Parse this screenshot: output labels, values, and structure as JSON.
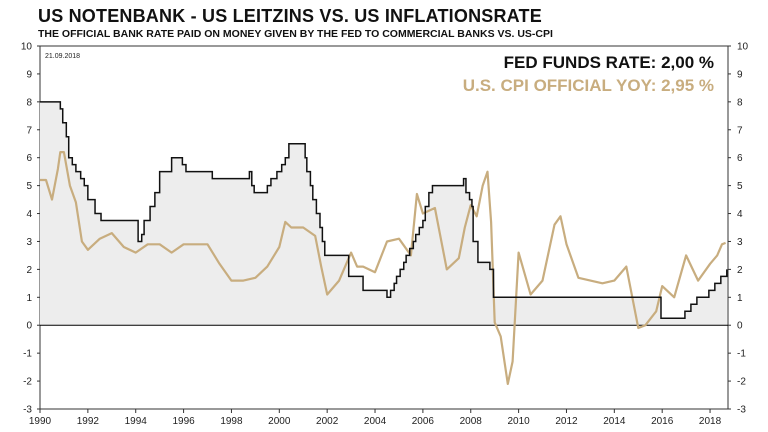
{
  "header": {
    "title": "US NOTENBANK - US LEITZINS VS. US INFLATIONSRATE",
    "subtitle": "THE OFFICIAL BANK RATE PAID ON MONEY GIVEN BY THE FED TO COMMERCIAL BANKS VS. US-CPI"
  },
  "date_label": "21.09.2018",
  "legend": {
    "fed_label": "FED FUNDS RATE: 2,00 %",
    "cpi_label": "U.S. CPI OFFICIAL YOY: 2,95 %"
  },
  "colors": {
    "fed_line": "#111111",
    "fed_fill": "#ededed",
    "cpi_line": "#c8ad7f",
    "zero_line": "#000000"
  },
  "chart_data": {
    "type": "line",
    "xlim": [
      1990,
      2018.75
    ],
    "ylim": [
      -3,
      10
    ],
    "x_ticks": [
      1990,
      1992,
      1994,
      1996,
      1998,
      2000,
      2002,
      2004,
      2006,
      2008,
      2010,
      2012,
      2014,
      2016,
      2018
    ],
    "y_ticks": [
      -3,
      -2,
      -1,
      0,
      1,
      2,
      3,
      4,
      5,
      6,
      7,
      8,
      9,
      10
    ],
    "series": [
      {
        "name": "FED FUNDS RATE",
        "style": "step-area",
        "x": [
          1990,
          1990.7,
          1990.85,
          1990.95,
          1991.1,
          1991.2,
          1991.35,
          1991.5,
          1991.7,
          1991.85,
          1992.0,
          1992.3,
          1992.55,
          1994.1,
          1994.25,
          1994.35,
          1994.6,
          1994.8,
          1995.0,
          1995.5,
          1995.95,
          1996.1,
          1997.2,
          1998.75,
          1998.85,
          1998.95,
          1999.5,
          1999.65,
          1999.9,
          2000.1,
          2000.25,
          2000.4,
          2001.0,
          2001.08,
          2001.15,
          2001.3,
          2001.4,
          2001.55,
          2001.7,
          2001.8,
          2001.9,
          2002.9,
          2003.5,
          2004.5,
          2004.65,
          2004.8,
          2004.9,
          2005.05,
          2005.2,
          2005.3,
          2005.45,
          2005.6,
          2005.7,
          2005.85,
          2006.0,
          2006.1,
          2006.25,
          2006.4,
          2007.7,
          2007.8,
          2007.95,
          2008.05,
          2008.1,
          2008.3,
          2008.8,
          2008.95,
          2015.95,
          2016.95,
          2017.2,
          2017.45,
          2017.95,
          2018.2,
          2018.45,
          2018.7
        ],
        "values": [
          8.0,
          8.0,
          7.75,
          7.25,
          6.75,
          6.0,
          5.75,
          5.5,
          5.25,
          5.0,
          4.5,
          4.0,
          3.75,
          3.0,
          3.25,
          3.75,
          4.25,
          4.75,
          5.5,
          6.0,
          5.75,
          5.5,
          5.25,
          5.5,
          5.0,
          4.75,
          5.0,
          5.25,
          5.5,
          5.75,
          6.0,
          6.5,
          6.5,
          6.0,
          5.5,
          5.0,
          4.5,
          4.0,
          3.5,
          3.0,
          2.5,
          1.75,
          1.25,
          1.0,
          1.25,
          1.5,
          1.75,
          2.0,
          2.25,
          2.5,
          2.75,
          3.0,
          3.25,
          3.5,
          3.75,
          4.25,
          4.75,
          5.0,
          5.25,
          4.75,
          4.5,
          4.25,
          3.0,
          2.25,
          2.0,
          1.0,
          0.25,
          0.5,
          0.75,
          1.0,
          1.25,
          1.5,
          1.75,
          2.0
        ]
      },
      {
        "name": "U.S. CPI OFFICIAL YOY",
        "style": "line",
        "x": [
          1990,
          1990.25,
          1990.5,
          1990.75,
          1990.85,
          1991,
          1991.25,
          1991.5,
          1991.75,
          1992,
          1992.5,
          1993,
          1993.5,
          1994,
          1994.5,
          1995,
          1995.5,
          1996,
          1996.5,
          1997,
          1997.5,
          1998,
          1998.5,
          1999,
          1999.5,
          2000,
          2000.25,
          2000.5,
          2000.75,
          2001,
          2001.5,
          2001.75,
          2002,
          2002.5,
          2003,
          2003.25,
          2003.5,
          2004,
          2004.5,
          2005,
          2005.5,
          2005.75,
          2006,
          2006.5,
          2007,
          2007.5,
          2007.75,
          2008,
          2008.25,
          2008.5,
          2008.7,
          2008.85,
          2009,
          2009.25,
          2009.55,
          2009.75,
          2010,
          2010.5,
          2011,
          2011.5,
          2011.75,
          2012,
          2012.5,
          2013,
          2013.5,
          2014,
          2014.5,
          2015,
          2015.3,
          2015.75,
          2016,
          2016.5,
          2017,
          2017.5,
          2018,
          2018.3,
          2018.5,
          2018.65
        ],
        "values": [
          5.2,
          5.2,
          4.5,
          5.6,
          6.2,
          6.2,
          5.0,
          4.4,
          3.0,
          2.7,
          3.1,
          3.3,
          2.8,
          2.6,
          2.9,
          2.9,
          2.6,
          2.9,
          2.9,
          2.9,
          2.2,
          1.6,
          1.6,
          1.7,
          2.1,
          2.8,
          3.7,
          3.5,
          3.5,
          3.5,
          3.2,
          2.1,
          1.1,
          1.6,
          2.6,
          2.1,
          2.1,
          1.9,
          3.0,
          3.1,
          2.5,
          4.7,
          4.0,
          4.2,
          2.0,
          2.4,
          3.5,
          4.3,
          3.9,
          5.0,
          5.5,
          3.7,
          0.1,
          -0.4,
          -2.1,
          -1.3,
          2.6,
          1.1,
          1.6,
          3.6,
          3.9,
          2.9,
          1.7,
          1.6,
          1.5,
          1.6,
          2.1,
          -0.1,
          0.0,
          0.5,
          1.4,
          1.0,
          2.5,
          1.6,
          2.2,
          2.5,
          2.9,
          2.95
        ]
      }
    ]
  }
}
